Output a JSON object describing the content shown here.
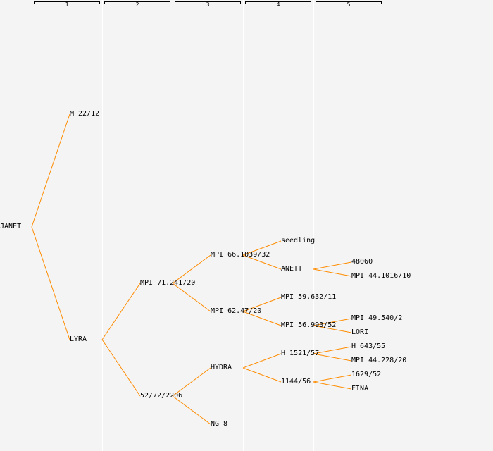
{
  "levels": [
    "1",
    "2",
    "3",
    "4",
    "5"
  ],
  "edge_color": "#ff8c00",
  "tree": {
    "label": "JANET",
    "children": [
      {
        "label": "M 22/12"
      },
      {
        "label": "LYRA",
        "children": [
          {
            "label": "MPI 71.241/20",
            "children": [
              {
                "label": "MPI 66.1039/32",
                "children": [
                  {
                    "label": "seedling"
                  },
                  {
                    "label": "ANETT",
                    "children": [
                      {
                        "label": "48060"
                      },
                      {
                        "label": "MPI 44.1016/10"
                      }
                    ]
                  }
                ]
              },
              {
                "label": "MPI 62.47/20",
                "children": [
                  {
                    "label": "MPI 59.632/11"
                  },
                  {
                    "label": "MPI 56.993/52",
                    "children": [
                      {
                        "label": "MPI 49.540/2"
                      },
                      {
                        "label": "LORI"
                      }
                    ]
                  }
                ]
              }
            ]
          },
          {
            "label": "52/72/2206",
            "children": [
              {
                "label": "HYDRA",
                "children": [
                  {
                    "label": "H 1521/57",
                    "children": [
                      {
                        "label": "H 643/55"
                      },
                      {
                        "label": "MPI 44.228/20"
                      }
                    ]
                  },
                  {
                    "label": "1144/56",
                    "children": [
                      {
                        "label": "1629/52"
                      },
                      {
                        "label": "FINA"
                      }
                    ]
                  }
                ]
              },
              {
                "label": "NG 8"
              }
            ]
          }
        ]
      }
    ]
  }
}
